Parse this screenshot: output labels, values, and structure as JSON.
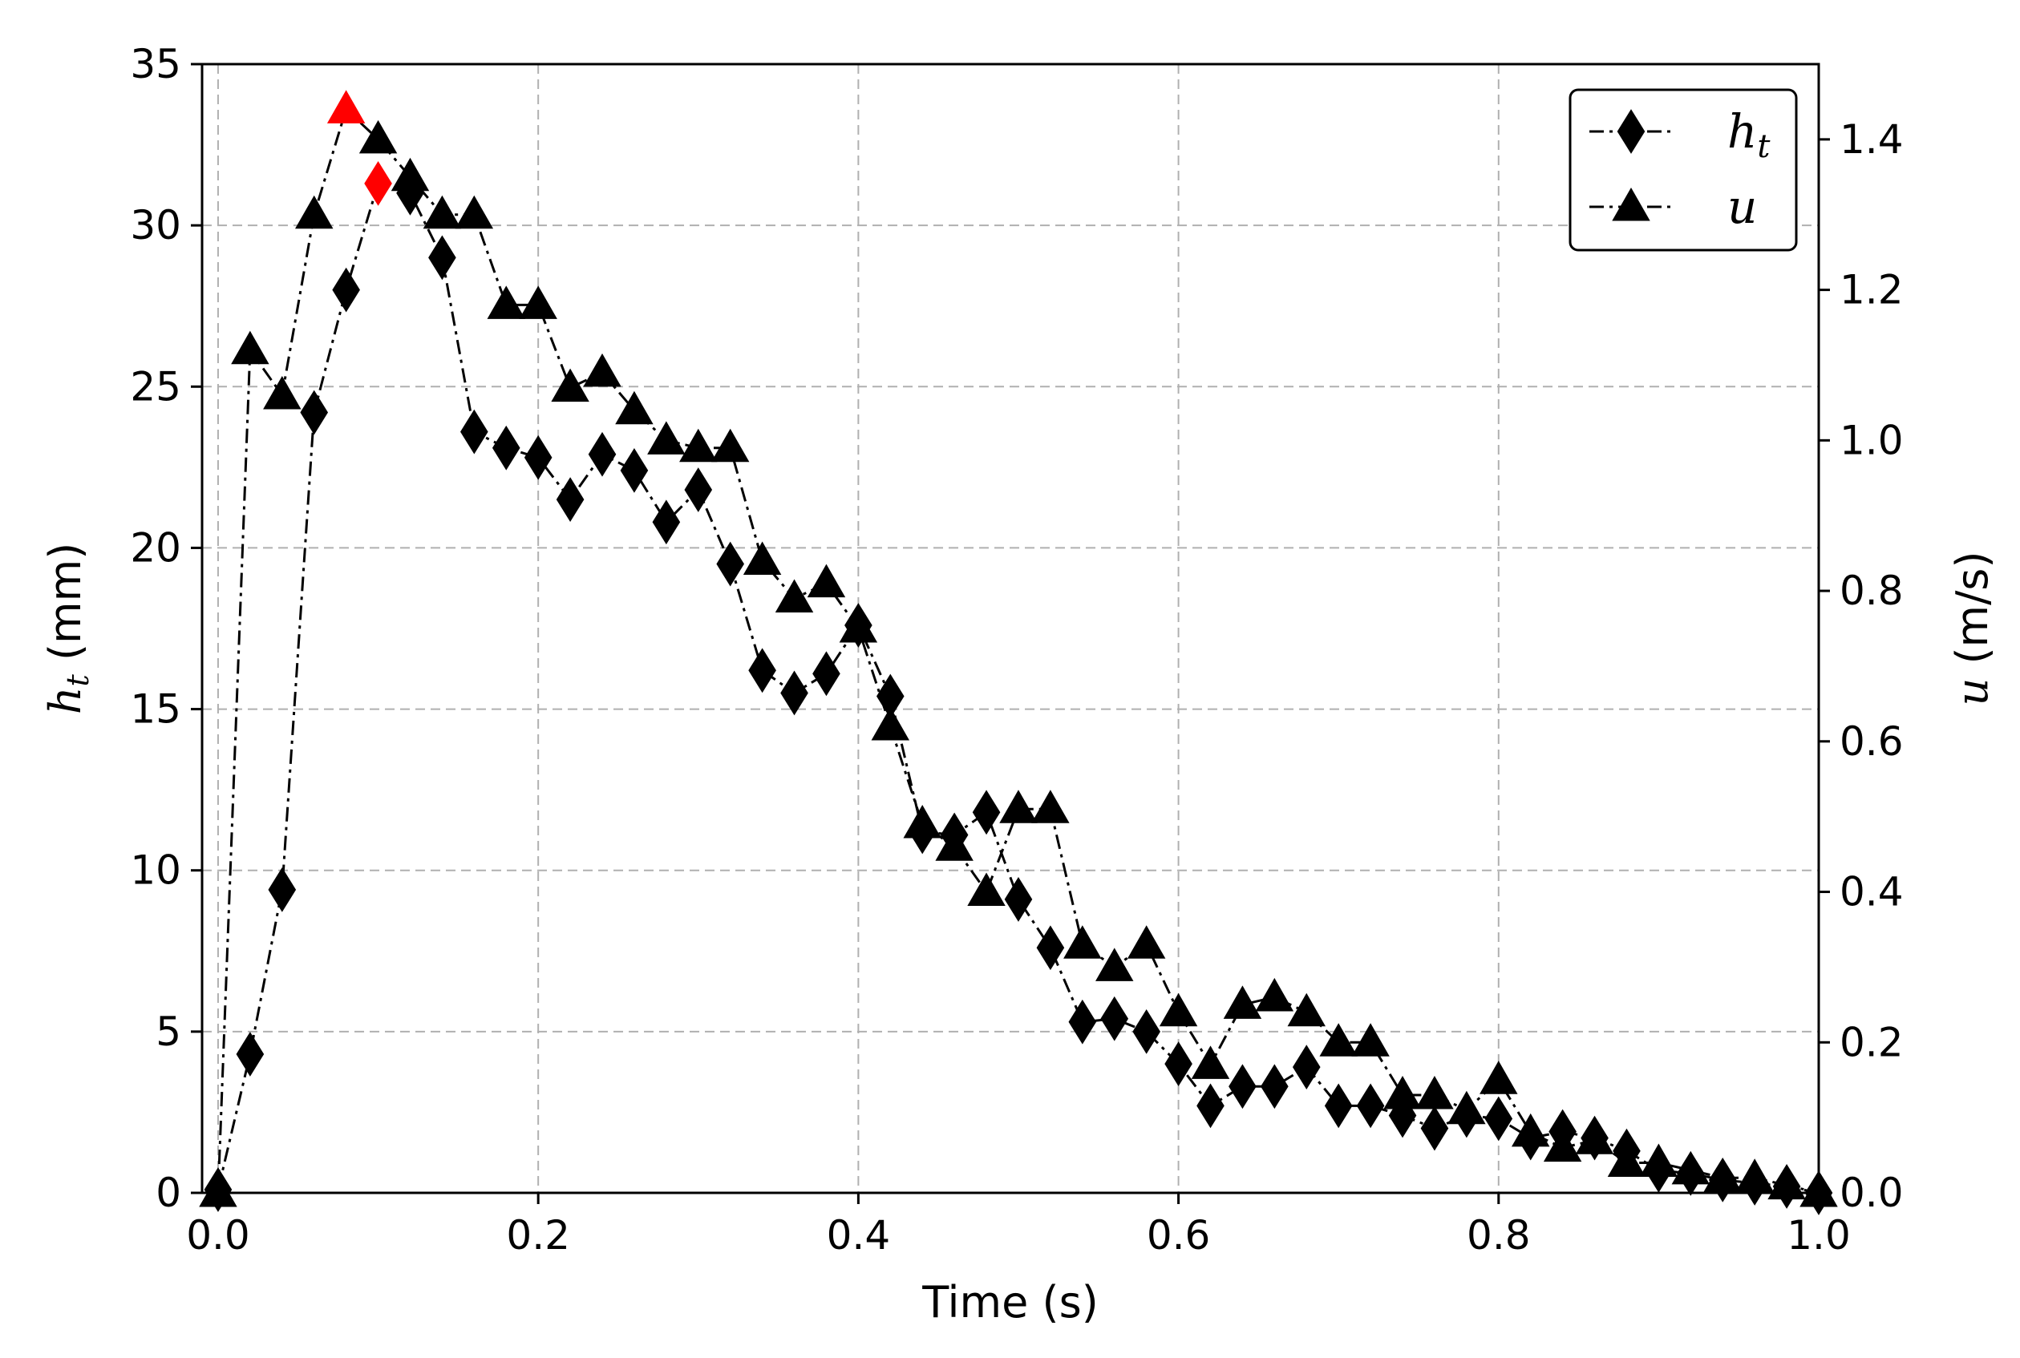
{
  "chart_data": {
    "type": "line",
    "x": [
      0.0,
      0.02,
      0.04,
      0.06,
      0.08,
      0.1,
      0.12,
      0.14,
      0.16,
      0.18,
      0.2,
      0.22,
      0.24,
      0.26,
      0.28,
      0.3,
      0.32,
      0.34,
      0.36,
      0.38,
      0.4,
      0.42,
      0.44,
      0.46,
      0.48,
      0.5,
      0.52,
      0.54,
      0.56,
      0.58,
      0.6,
      0.62,
      0.64,
      0.66,
      0.68,
      0.7,
      0.72,
      0.74,
      0.76,
      0.78,
      0.8,
      0.82,
      0.84,
      0.86,
      0.88,
      0.9,
      0.92,
      0.94,
      0.96,
      0.98,
      1.0
    ],
    "series": [
      {
        "name": "h_t",
        "axis": "left",
        "marker": "diamond",
        "values": [
          0.1,
          4.3,
          9.4,
          24.2,
          28.0,
          31.3,
          31.0,
          29.0,
          23.6,
          23.1,
          22.8,
          21.5,
          22.9,
          22.4,
          20.8,
          21.8,
          19.5,
          16.2,
          15.5,
          16.1,
          17.6,
          15.4,
          11.2,
          11.1,
          11.8,
          9.1,
          7.6,
          5.3,
          5.4,
          5.0,
          4.0,
          2.7,
          3.3,
          3.3,
          3.9,
          2.7,
          2.7,
          2.4,
          2.0,
          2.4,
          2.3,
          1.7,
          1.9,
          1.7,
          1.3,
          0.7,
          0.6,
          0.4,
          0.3,
          0.2,
          0.0
        ],
        "highlight_index": 5,
        "highlight_color": "#ff0000"
      },
      {
        "name": "u",
        "axis": "right",
        "marker": "triangle",
        "values": [
          0.0,
          1.12,
          1.06,
          1.3,
          1.44,
          1.4,
          1.35,
          1.3,
          1.3,
          1.18,
          1.18,
          1.07,
          1.09,
          1.04,
          1.0,
          0.99,
          0.99,
          0.84,
          0.79,
          0.81,
          0.75,
          0.62,
          0.49,
          0.46,
          0.4,
          0.51,
          0.51,
          0.33,
          0.3,
          0.33,
          0.24,
          0.17,
          0.25,
          0.26,
          0.24,
          0.2,
          0.2,
          0.13,
          0.13,
          0.11,
          0.15,
          0.08,
          0.06,
          0.07,
          0.04,
          0.04,
          0.03,
          0.02,
          0.02,
          0.01,
          0.0
        ],
        "highlight_index": 4,
        "highlight_color": "#ff0000"
      }
    ],
    "xlabel": "Time (s)",
    "ylabel_left_symbol": "h",
    "ylabel_left_sub": "t",
    "ylabel_left_unit": " (mm)",
    "ylabel_right_symbol": "u",
    "ylabel_right_unit": " (m/s)",
    "xlim": [
      -0.01,
      1.0
    ],
    "ylim_left": [
      0,
      35
    ],
    "ylim_right": [
      0,
      1.5
    ],
    "xticks": [
      "0.0",
      "0.2",
      "0.4",
      "0.6",
      "0.8",
      "1.0"
    ],
    "yticks_left": [
      "0",
      "5",
      "10",
      "15",
      "20",
      "25",
      "30",
      "35"
    ],
    "yticks_right": [
      "0.0",
      "0.2",
      "0.4",
      "0.6",
      "0.8",
      "1.0",
      "1.2",
      "1.4"
    ],
    "grid": true,
    "legend_position": "top-right",
    "legend": [
      {
        "symbol": "h",
        "sub": "t",
        "marker": "diamond"
      },
      {
        "symbol": "u",
        "sub": "",
        "marker": "triangle"
      }
    ],
    "line_color": "#000000",
    "marker_color": "#000000",
    "grid_color": "#b0b0b0"
  }
}
